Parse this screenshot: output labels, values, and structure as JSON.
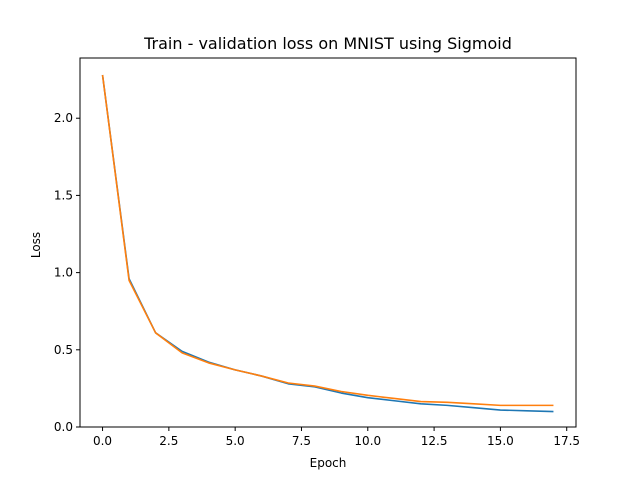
{
  "chart_data": {
    "type": "line",
    "title": "Train - validation loss on MNIST using Sigmoid",
    "xlabel": "Epoch",
    "ylabel": "Loss",
    "xlim": [
      -0.85,
      17.85
    ],
    "ylim": [
      0,
      2.39
    ],
    "xticks": [
      0.0,
      2.5,
      5.0,
      7.5,
      10.0,
      12.5,
      15.0,
      17.5
    ],
    "xtick_labels": [
      "0.0",
      "2.5",
      "5.0",
      "7.5",
      "10.0",
      "12.5",
      "15.0",
      "17.5"
    ],
    "yticks": [
      0.0,
      0.5,
      1.0,
      1.5,
      2.0
    ],
    "ytick_labels": [
      "0.0",
      "0.5",
      "1.0",
      "1.5",
      "2.0"
    ],
    "grid": false,
    "x": [
      0,
      1,
      2,
      3,
      4,
      5,
      6,
      7,
      8,
      9,
      10,
      11,
      12,
      13,
      14,
      15,
      16,
      17
    ],
    "series": [
      {
        "color": "#1f77b4",
        "values": [
          2.28,
          0.96,
          0.61,
          0.49,
          0.42,
          0.37,
          0.33,
          0.28,
          0.26,
          0.22,
          0.19,
          0.17,
          0.15,
          0.14,
          0.125,
          0.11,
          0.105,
          0.1
        ]
      },
      {
        "color": "#ff7f0e",
        "values": [
          2.28,
          0.95,
          0.61,
          0.48,
          0.415,
          0.37,
          0.33,
          0.285,
          0.265,
          0.23,
          0.205,
          0.185,
          0.165,
          0.16,
          0.15,
          0.14,
          0.14,
          0.14
        ]
      }
    ]
  }
}
